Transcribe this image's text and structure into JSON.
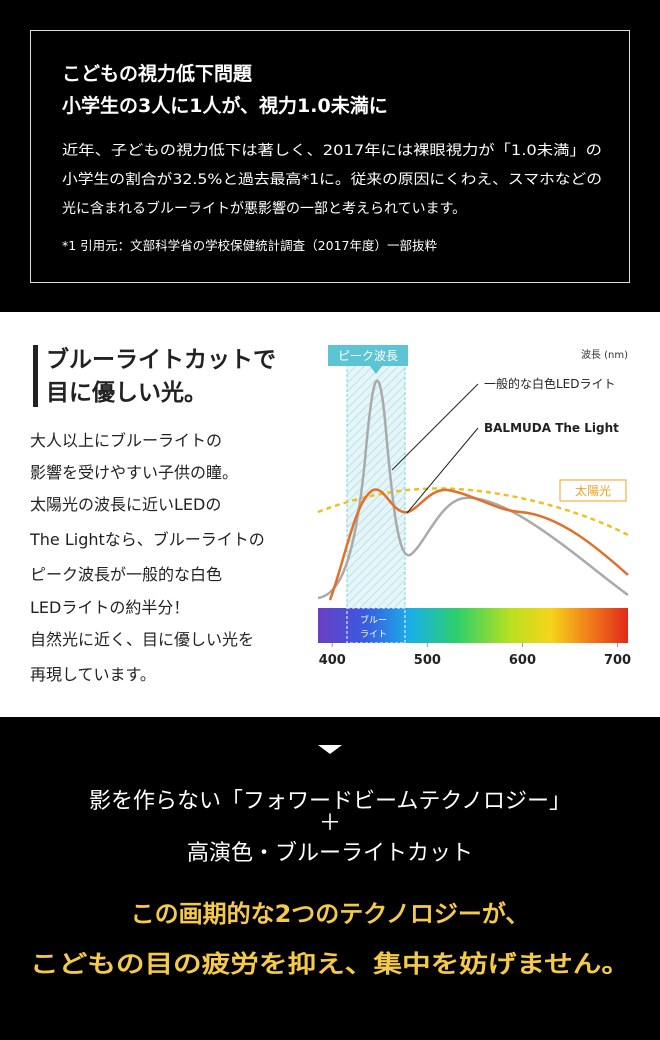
{
  "intro": {
    "title": "こどもの視力低下問題",
    "subtitle": "小学生の3人に1人が、視力1.0未満に",
    "body": [
      "近年、子どもの視力低下は著しく、2017年には裸眼視力が「1.0未満」の",
      "小学生の割合が32.5%と過去最高*1に。従来の原因にくわえ、スマホなどの",
      "光に含まれるブルーライトが悪影響の一部と考えられています。"
    ],
    "note": "*1 引用元：文部科学省の学校保健統計調査（2017年度）一部抜粋"
  },
  "feature": {
    "title": [
      "ブルーライトカットで",
      "目に優しい光。"
    ],
    "body": [
      "大人以上にブルーライトの",
      "影響を受けやすい子供の瞳。",
      "太陽光の波長に近いLEDの",
      "The Lightなら、ブルーライトの",
      "ピーク波長が一般的な白色",
      "LEDライトの約半分！",
      "自然光に近く、目に優しい光を",
      "再現しています。"
    ]
  },
  "spectrum": {
    "peak_label": "ピーク波長",
    "axis_label": "波長 (nm)",
    "series_labels": [
      "一般的な白色LEDライト",
      "BALMUDA The Light",
      "太陽光"
    ],
    "band_label": [
      "ブルー",
      "ライト"
    ],
    "xlim": [
      385,
      711
    ],
    "xticks": [
      400,
      500,
      600,
      700
    ]
  },
  "summary": {
    "lines": [
      "影を作らない「フォワードビームテクノロジー」",
      "＋",
      "高演色・ブルーライトカット"
    ],
    "highlight": [
      "この画期的な2つのテクノロジーが、",
      "こどもの目の疲労を抑え、集中を妨げません。"
    ]
  }
}
